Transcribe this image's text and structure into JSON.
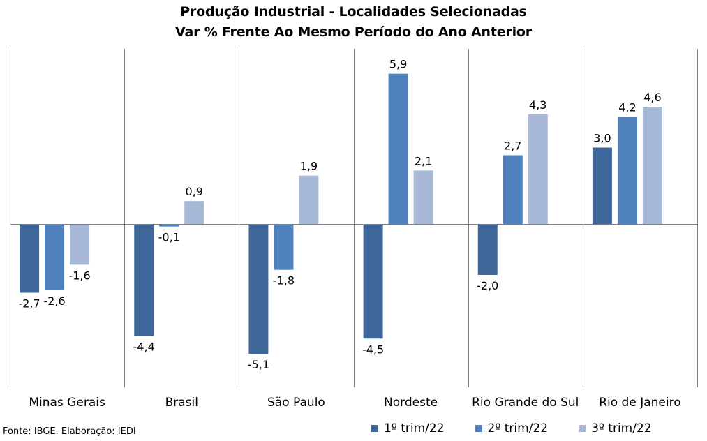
{
  "chart_data": {
    "type": "bar",
    "title": "Produção Industrial - Localidades Selecionadas",
    "subtitle": "Var % Frente Ao Mesmo Período do Ano Anterior",
    "categories": [
      "Minas Gerais",
      "Brasil",
      "São Paulo",
      "Nordeste",
      "Rio Grande do Sul",
      "Rio de Janeiro"
    ],
    "series": [
      {
        "name": "1º trim/22",
        "color": "#3f6698",
        "values": [
          -2.7,
          -4.4,
          -5.1,
          -4.5,
          -2.0,
          3.0
        ]
      },
      {
        "name": "2º trim/22",
        "color": "#4f81bd",
        "values": [
          -2.6,
          -0.1,
          -1.8,
          5.9,
          2.7,
          4.2
        ]
      },
      {
        "name": "3º trim/22",
        "color": "#a7b9d7",
        "values": [
          -1.6,
          0.9,
          1.9,
          2.1,
          4.3,
          4.6
        ]
      }
    ],
    "value_labels": [
      [
        "-2,7",
        "-4,4",
        "-5,1",
        "-4,5",
        "-2,0",
        "3,0"
      ],
      [
        "-2,6",
        "-0,1",
        "-1,8",
        "5,9",
        "2,7",
        "4,2"
      ],
      [
        "-1,6",
        "0,9",
        "1,9",
        "2,1",
        "4,3",
        "4,6"
      ]
    ],
    "ylim": [
      -6.3,
      6.8
    ],
    "grid": false,
    "legend_position": "bottom-right"
  },
  "source_note": "Fonte: IBGE. Elaboração: IEDI"
}
